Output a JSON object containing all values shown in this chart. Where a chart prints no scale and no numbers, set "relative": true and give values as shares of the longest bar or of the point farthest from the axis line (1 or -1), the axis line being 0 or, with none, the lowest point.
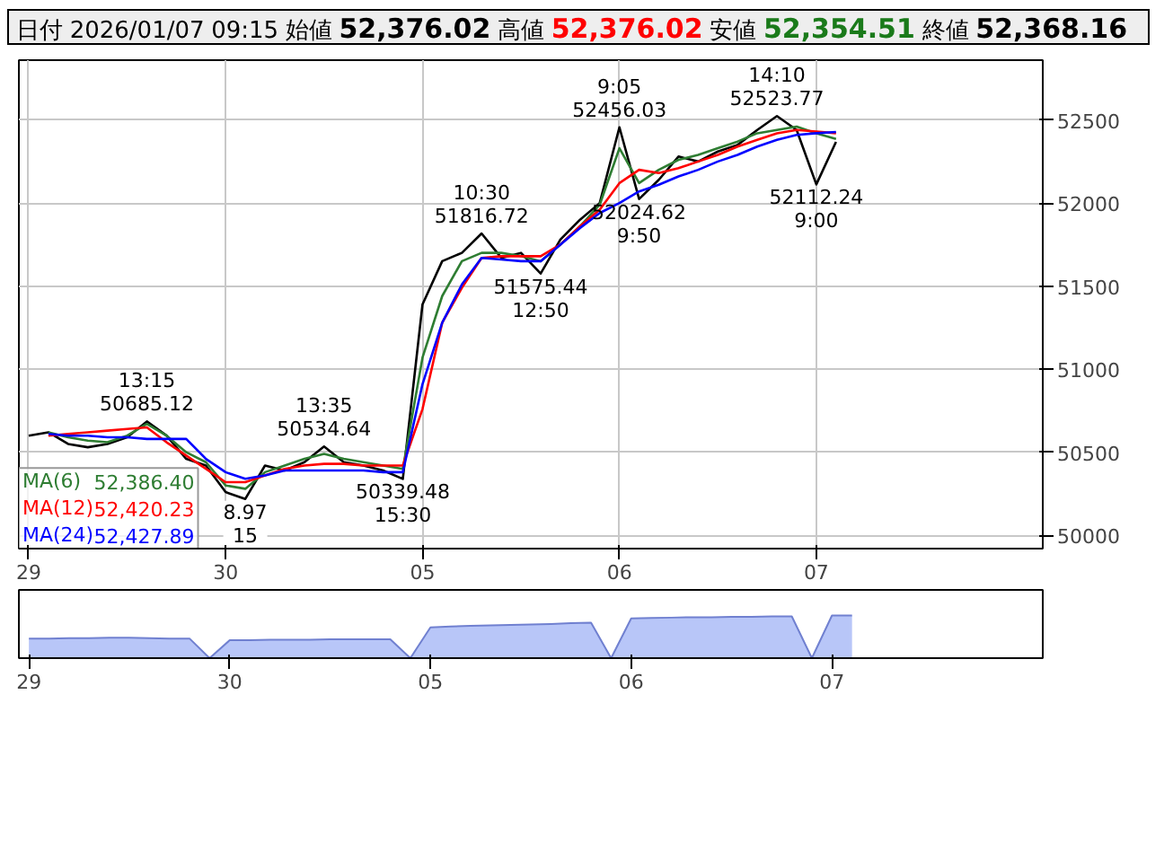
{
  "chart_data": [
    {
      "type": "line",
      "title": "日付 2026/01/07 09:15 始値 52,376.02 高値 52,376.02 安値 52,354.51 終値 52,368.16",
      "categories": [
        "29",
        null,
        null,
        null,
        null,
        null,
        null,
        null,
        null,
        null,
        "30",
        null,
        null,
        null,
        null,
        null,
        null,
        null,
        null,
        null,
        "05",
        null,
        null,
        null,
        null,
        null,
        null,
        null,
        null,
        null,
        "06",
        null,
        null,
        null,
        null,
        null,
        null,
        null,
        null,
        null,
        "07",
        null,
        null,
        null,
        null,
        null,
        null,
        null,
        null,
        null,
        null,
        null
      ],
      "ylim": [
        49920,
        52860
      ],
      "yticks": [
        50000,
        50500,
        51000,
        51500,
        52000,
        52500
      ],
      "grid": true,
      "legend": "bottom left",
      "series": [
        {
          "color": "#000000",
          "values": [
            50600,
            50620,
            50550,
            50530,
            50550,
            50590,
            50685.12,
            50600,
            50460,
            50420,
            50260,
            50218.97,
            50420,
            50390,
            50440,
            50534.64,
            50440,
            50420,
            50390,
            50339.48,
            51390,
            51650,
            51700,
            51816.72,
            51670,
            51700,
            51575.44,
            51780,
            51900,
            52000,
            52456.03,
            52024.62,
            52140,
            52280,
            52250,
            52310,
            52350,
            52440,
            52523.77,
            52440,
            52112.24,
            52368.16,
            null,
            null,
            null,
            null,
            null,
            null,
            null,
            null,
            null,
            null
          ]
        },
        {
          "name": "MA(6)",
          "color": "#2e7d32",
          "values": [
            null,
            50620,
            50590,
            50570,
            50560,
            50600,
            50670,
            50600,
            50500,
            50440,
            50300,
            50280,
            50380,
            50420,
            50460,
            50490,
            50460,
            50440,
            50420,
            50400,
            51070,
            51440,
            51650,
            51700,
            51700,
            51680,
            51650,
            51750,
            51860,
            51990,
            52330,
            52120,
            52200,
            52260,
            52290,
            52330,
            52370,
            52420,
            52440,
            52460,
            52420,
            52386.4,
            null,
            null,
            null,
            null,
            null,
            null,
            null,
            null,
            null,
            null
          ]
        },
        {
          "name": "MA(12)",
          "color": "#ff0000",
          "values": [
            null,
            50600,
            50610,
            50620,
            50630,
            50640,
            50650,
            50560,
            50480,
            50400,
            50320,
            50320,
            50360,
            50400,
            50420,
            50430,
            50430,
            50420,
            50420,
            50420,
            50760,
            51280,
            51490,
            51670,
            51680,
            51680,
            51680,
            51750,
            51860,
            51960,
            52120,
            52200,
            52180,
            52210,
            52250,
            52290,
            52340,
            52380,
            52420,
            52440,
            52430,
            52420.23,
            null,
            null,
            null,
            null,
            null,
            null,
            null,
            null,
            null,
            null
          ]
        },
        {
          "name": "MA(24)",
          "color": "#0000ff",
          "values": [
            null,
            50610,
            50600,
            50600,
            50590,
            50590,
            50580,
            50580,
            50580,
            50460,
            50380,
            50340,
            50360,
            50390,
            50390,
            50390,
            50390,
            50390,
            50380,
            50380,
            50910,
            51280,
            51510,
            51670,
            51660,
            51650,
            51650,
            51750,
            51850,
            51940,
            52000,
            52070,
            52110,
            52160,
            52200,
            52250,
            52290,
            52340,
            52380,
            52410,
            52420,
            52427.89,
            null,
            null,
            null,
            null,
            null,
            null,
            null,
            null,
            null,
            null
          ]
        }
      ],
      "annotations": [
        "52,386.40",
        "52,420.23",
        "52,427.89",
        {
          "text": "13:15\n50685.12",
          "y": 50685.12
        },
        {
          "text": "8.97\n15",
          "y": 50218.97
        },
        {
          "text": "13:35\n50534.64",
          "y": 50534.64
        },
        {
          "text": "50339.48\n15:30",
          "y": 50339.48
        },
        {
          "text": "10:30\n51816.72",
          "y": 51816.72
        },
        {
          "text": "51575.44\n12:50",
          "y": 51575.44
        },
        {
          "text": "9:05\n52456.03",
          "y": 52456.03
        },
        {
          "text": "52024.62\n9:50",
          "y": 52024.62
        },
        {
          "text": "14:10\n52523.77",
          "y": 52523.77
        },
        {
          "text": "52112.24\n9:00",
          "y": 52112.24
        }
      ]
    },
    {
      "type": "area",
      "relative": true,
      "categories": [
        "29",
        null,
        null,
        null,
        null,
        null,
        null,
        null,
        null,
        null,
        "30",
        null,
        null,
        null,
        null,
        null,
        null,
        null,
        null,
        null,
        "05",
        null,
        null,
        null,
        null,
        null,
        null,
        null,
        null,
        null,
        "06",
        null,
        null,
        null,
        null,
        null,
        null,
        null,
        null,
        null,
        "07",
        null,
        null,
        null,
        null,
        null,
        null,
        null,
        null,
        null,
        null
      ],
      "series": [
        {
          "color": "#b8c6f8",
          "values": [
            0.46,
            0.46,
            0.47,
            0.47,
            0.48,
            0.48,
            0.47,
            0.46,
            0.46,
            0,
            0.42,
            0.42,
            0.43,
            0.43,
            0.43,
            0.44,
            0.44,
            0.44,
            0.44,
            0,
            0.72,
            0.74,
            0.76,
            0.77,
            0.78,
            0.79,
            0.8,
            0.82,
            0.83,
            0,
            0.93,
            0.94,
            0.95,
            0.96,
            0.96,
            0.97,
            0.97,
            0.98,
            0.98,
            0,
            1,
            1,
            null,
            null,
            null,
            null,
            null,
            null,
            null,
            null,
            null
          ]
        }
      ]
    }
  ]
}
